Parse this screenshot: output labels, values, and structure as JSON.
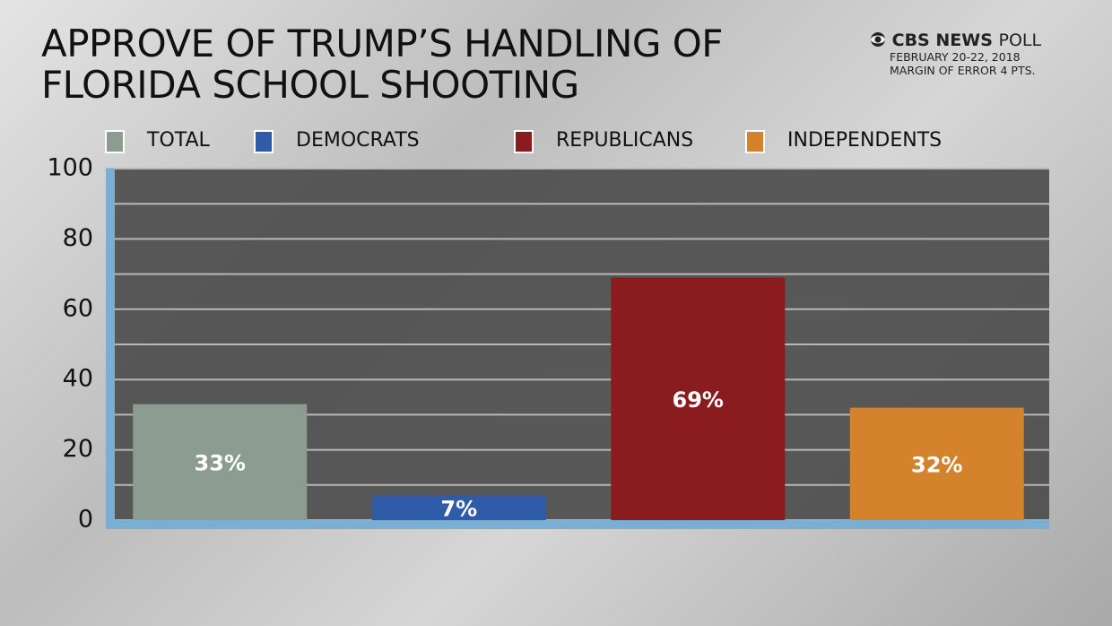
{
  "chart_data": {
    "type": "bar",
    "title": "APPROVE OF TRUMP’S HANDLING OF FLORIDA SCHOOL SHOOTING",
    "source": {
      "brand": "CBS NEWS",
      "brand_suffix": "POLL",
      "dates": "FEBRUARY 20-22, 2018",
      "margin": "MARGIN OF ERROR 4 PTS."
    },
    "categories": [
      "TOTAL",
      "DEMOCRATS",
      "REPUBLICANS",
      "INDEPENDENTS"
    ],
    "values": [
      33,
      7,
      69,
      32
    ],
    "value_labels": [
      "33%",
      "7%",
      "69%",
      "32%"
    ],
    "colors": [
      "#8d9c90",
      "#2f5ba8",
      "#8a1c1f",
      "#d4822c"
    ],
    "ylim": [
      0,
      100
    ],
    "yticks": [
      0,
      20,
      40,
      60,
      80,
      100
    ],
    "yminor": [
      10,
      30,
      50,
      70,
      90
    ],
    "grid": true
  }
}
